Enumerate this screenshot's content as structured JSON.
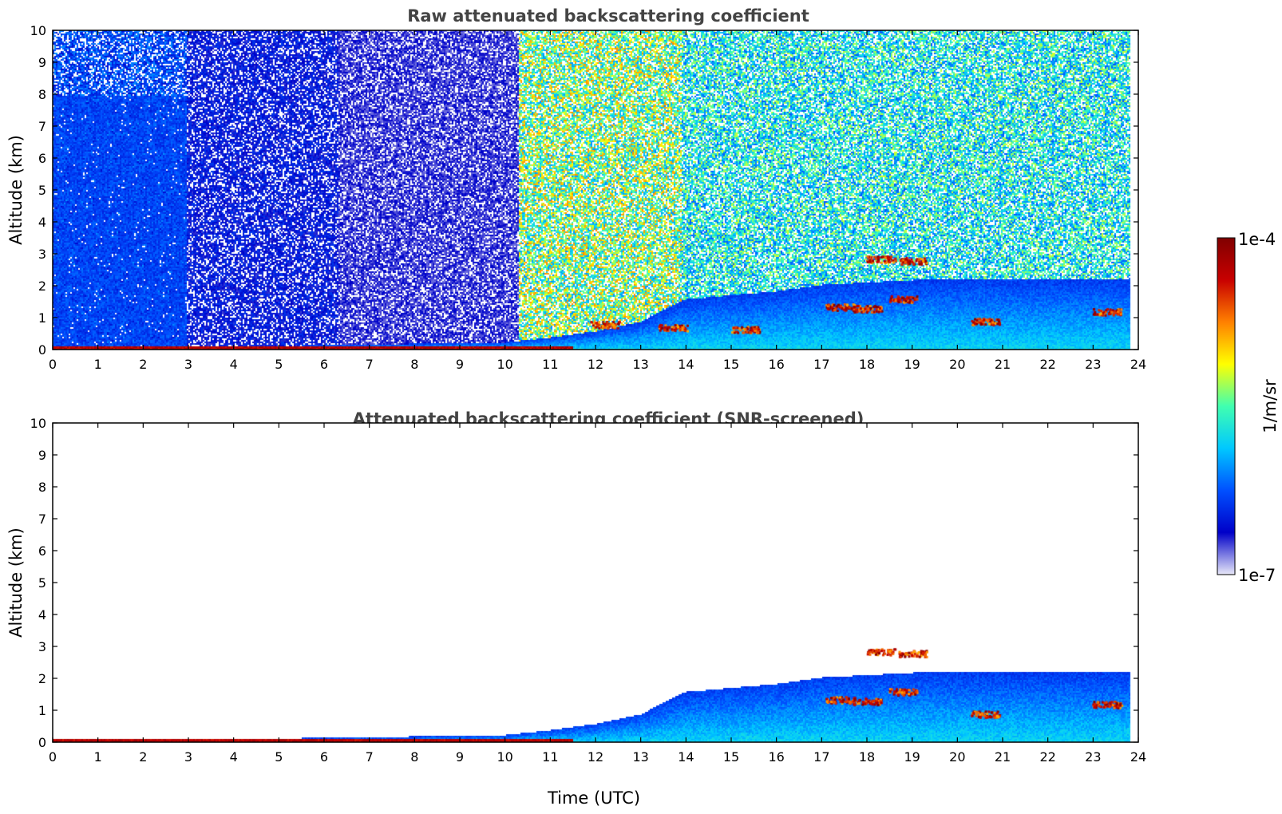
{
  "chart_data": [
    {
      "type": "heatmap",
      "title": "Raw attenuated backscattering coefficient",
      "xlabel": "",
      "ylabel": "Altitude (km)",
      "xlim": [
        0,
        24
      ],
      "ylim": [
        0,
        10
      ],
      "x_ticks": [
        "0",
        "1",
        "2",
        "3",
        "4",
        "5",
        "6",
        "7",
        "8",
        "9",
        "10",
        "11",
        "12",
        "13",
        "14",
        "15",
        "16",
        "17",
        "18",
        "19",
        "20",
        "21",
        "22",
        "23",
        "24"
      ],
      "y_ticks": [
        "0",
        "1",
        "2",
        "3",
        "4",
        "5",
        "6",
        "7",
        "8",
        "9",
        "10"
      ],
      "data_end_x": 23.8,
      "noise_regimes": [
        {
          "x": [
            0,
            2.95
          ],
          "level": 0.27
        },
        {
          "x": [
            2.95,
            6.3
          ],
          "level": 0.18
        },
        {
          "x": [
            6.3,
            10.3
          ],
          "level": 0.12
        },
        {
          "x": [
            10.3,
            13.9
          ],
          "level": 0.62
        },
        {
          "x": [
            13.9,
            23.8
          ],
          "level": 0.5
        }
      ],
      "surface_layer_top_km": [
        [
          0,
          0.1
        ],
        [
          4,
          0.12
        ],
        [
          7,
          0.18
        ],
        [
          10,
          0.25
        ],
        [
          11,
          0.4
        ],
        [
          12,
          0.6
        ],
        [
          13,
          0.9
        ],
        [
          13.8,
          1.5
        ],
        [
          14,
          1.6
        ],
        [
          16,
          1.85
        ],
        [
          17,
          2.05
        ],
        [
          19,
          2.2
        ],
        [
          23.8,
          2.2
        ]
      ],
      "clouds": [
        {
          "x": 18.3,
          "alt_km": 2.85
        },
        {
          "x": 19.0,
          "alt_km": 2.8
        },
        {
          "x": 18.8,
          "alt_km": 1.6
        },
        {
          "x": 18.0,
          "alt_km": 1.3
        },
        {
          "x": 17.4,
          "alt_km": 1.35
        },
        {
          "x": 20.6,
          "alt_km": 0.9
        },
        {
          "x": 23.3,
          "alt_km": 1.2
        },
        {
          "x": 13.7,
          "alt_km": 0.7
        },
        {
          "x": 15.3,
          "alt_km": 0.65
        },
        {
          "x": 12.2,
          "alt_km": 0.8
        }
      ]
    },
    {
      "type": "heatmap",
      "title": "Attenuated backscattering coefficient (SNR-screened)",
      "xlabel": "Time (UTC)",
      "ylabel": "Altitude (km)",
      "xlim": [
        0,
        24
      ],
      "ylim": [
        0,
        10
      ],
      "x_ticks": [
        "0",
        "1",
        "2",
        "3",
        "4",
        "5",
        "6",
        "7",
        "8",
        "9",
        "10",
        "11",
        "12",
        "13",
        "14",
        "15",
        "16",
        "17",
        "18",
        "19",
        "20",
        "21",
        "22",
        "23",
        "24"
      ],
      "y_ticks": [
        "0",
        "1",
        "2",
        "3",
        "4",
        "5",
        "6",
        "7",
        "8",
        "9",
        "10"
      ],
      "data_end_x": 23.8,
      "screened": true,
      "surface_layer_top_km": [
        [
          0,
          0.1
        ],
        [
          4,
          0.12
        ],
        [
          7,
          0.18
        ],
        [
          10,
          0.25
        ],
        [
          11,
          0.4
        ],
        [
          12,
          0.6
        ],
        [
          13,
          0.9
        ],
        [
          13.8,
          1.5
        ],
        [
          14,
          1.6
        ],
        [
          16,
          1.85
        ],
        [
          17,
          2.05
        ],
        [
          19,
          2.2
        ],
        [
          23.8,
          2.2
        ]
      ],
      "clouds": [
        {
          "x": 18.3,
          "alt_km": 2.85
        },
        {
          "x": 19.0,
          "alt_km": 2.8
        },
        {
          "x": 18.8,
          "alt_km": 1.6
        },
        {
          "x": 18.0,
          "alt_km": 1.3
        },
        {
          "x": 17.4,
          "alt_km": 1.35
        },
        {
          "x": 20.6,
          "alt_km": 0.9
        },
        {
          "x": 23.3,
          "alt_km": 1.2
        }
      ]
    }
  ],
  "colorbar": {
    "label": "1/m/sr",
    "max_label": "1e-4",
    "min_label": "1e-7",
    "scale": "log",
    "colormap": "jet",
    "colors": [
      "#e8e8f8",
      "#0000c8",
      "#0050ff",
      "#00c8ff",
      "#40ffb0",
      "#ffff00",
      "#ff8000",
      "#c80000",
      "#800000"
    ]
  }
}
